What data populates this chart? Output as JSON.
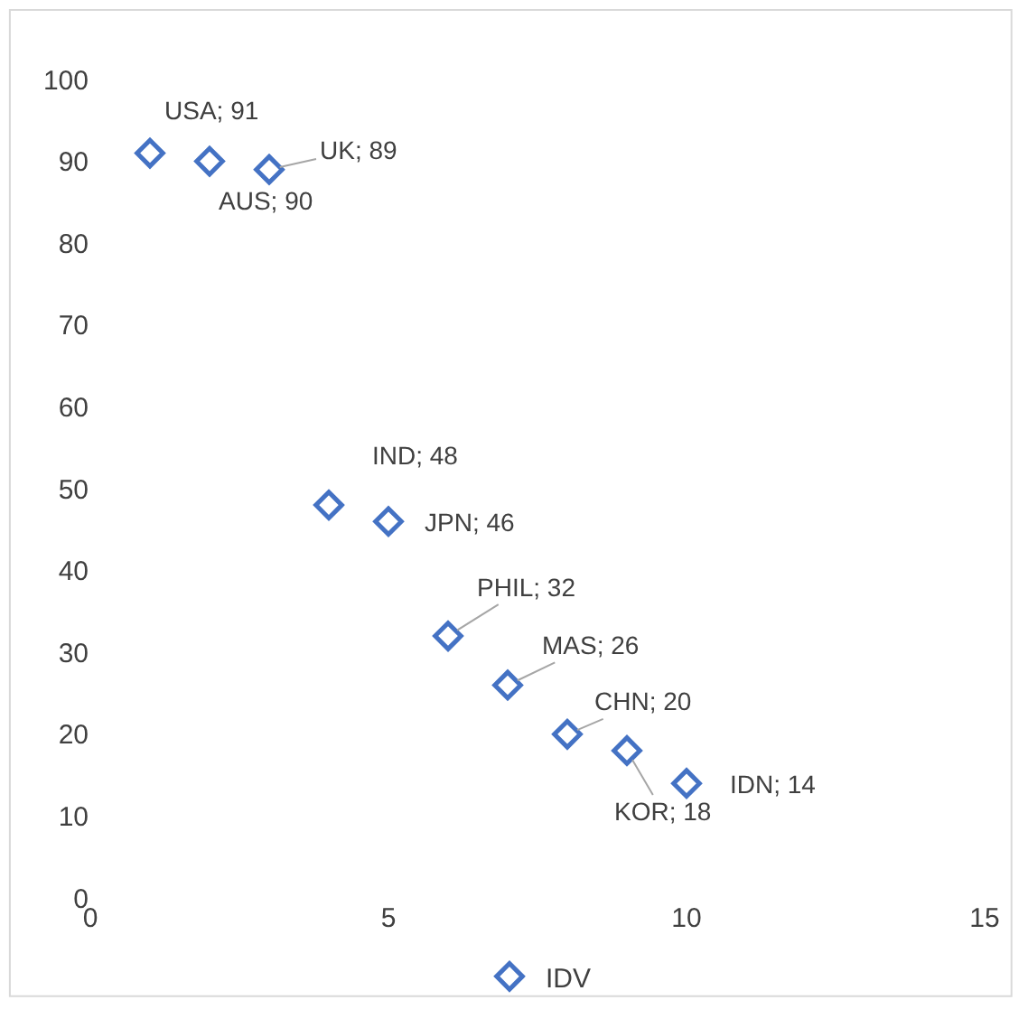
{
  "chart_data": {
    "type": "scatter",
    "x": [
      1,
      2,
      3,
      4,
      5,
      6,
      7,
      8,
      9,
      10
    ],
    "series": [
      {
        "name": "IDV",
        "color": "#4472c4",
        "values": [
          91,
          90,
          89,
          48,
          46,
          32,
          26,
          20,
          18,
          14
        ],
        "value_labels": [
          "USA; 91",
          "AUS; 90",
          "UK; 89",
          "IND; 48",
          "JPN; 46",
          "PHIL; 32",
          "MAS; 26",
          "CHN; 20",
          "KOR; 18",
          "IDN; 14"
        ]
      }
    ],
    "marker": "diamond",
    "xlim": [
      0,
      15
    ],
    "xticks": [
      0,
      5,
      10,
      15
    ],
    "ylim": [
      0,
      100
    ],
    "yticks": [
      0,
      10,
      20,
      30,
      40,
      50,
      60,
      70,
      80,
      90,
      100
    ],
    "grid": false,
    "legend": "bottom"
  }
}
